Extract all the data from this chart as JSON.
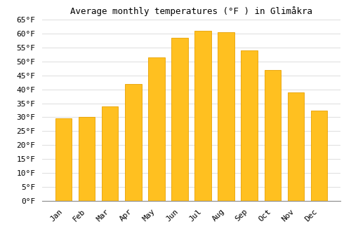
{
  "title": "Average monthly temperatures (°F ) in Glimåkra",
  "months": [
    "Jan",
    "Feb",
    "Mar",
    "Apr",
    "May",
    "Jun",
    "Jul",
    "Aug",
    "Sep",
    "Oct",
    "Nov",
    "Dec"
  ],
  "values": [
    29.5,
    30.0,
    34.0,
    42.0,
    51.5,
    58.5,
    61.0,
    60.5,
    54.0,
    47.0,
    39.0,
    32.5
  ],
  "bar_color": "#FFC020",
  "bar_edge_color": "#E8A000",
  "ylim": [
    0,
    65
  ],
  "yticks": [
    0,
    5,
    10,
    15,
    20,
    25,
    30,
    35,
    40,
    45,
    50,
    55,
    60,
    65
  ],
  "background_color": "#FFFFFF",
  "grid_color": "#DDDDDD",
  "title_fontsize": 9,
  "tick_fontsize": 8,
  "font_family": "monospace"
}
